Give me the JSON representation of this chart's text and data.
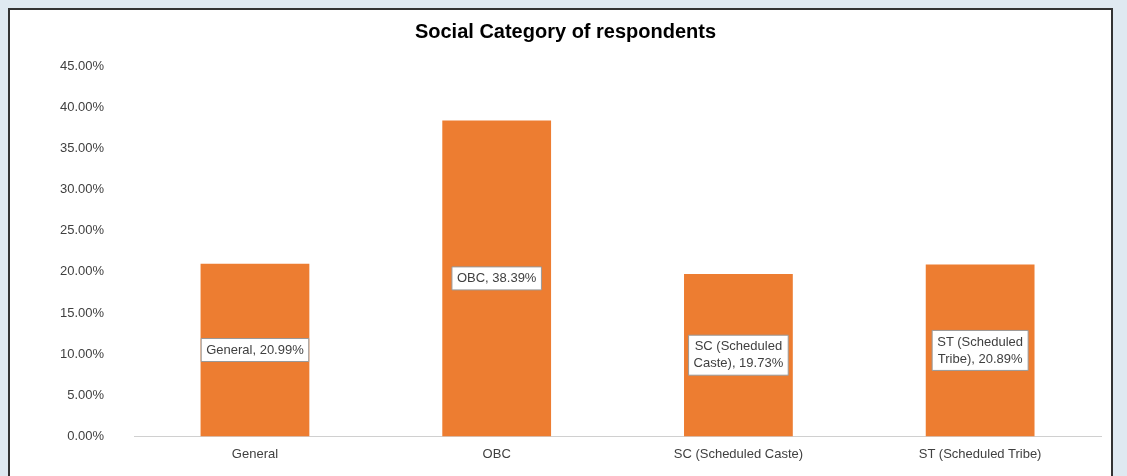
{
  "chart_data": {
    "type": "bar",
    "title": "Social Category of respondents",
    "categories": [
      "General",
      "OBC",
      "SC (Scheduled Caste)",
      "ST (Scheduled Tribe)"
    ],
    "values": [
      20.99,
      38.39,
      19.73,
      20.89
    ],
    "color": "#ed7d31",
    "value_labels": [
      "General, 20.99%",
      "OBC, 38.39%",
      "SC (Scheduled Caste), 19.73%",
      "ST (Scheduled Tribe), 20.89%"
    ],
    "ylim": [
      0,
      45
    ],
    "yticks": [
      {
        "value": 0,
        "label": "0.00%"
      },
      {
        "value": 5,
        "label": "5.00%"
      },
      {
        "value": 10,
        "label": "10.00%"
      },
      {
        "value": 15,
        "label": "15.00%"
      },
      {
        "value": 20,
        "label": "20.00%"
      },
      {
        "value": 25,
        "label": "25.00%"
      },
      {
        "value": 30,
        "label": "30.00%"
      },
      {
        "value": 35,
        "label": "35.00%"
      },
      {
        "value": 40,
        "label": "40.00%"
      },
      {
        "value": 45,
        "label": "45.00%"
      }
    ],
    "grid": false,
    "legend": false
  }
}
